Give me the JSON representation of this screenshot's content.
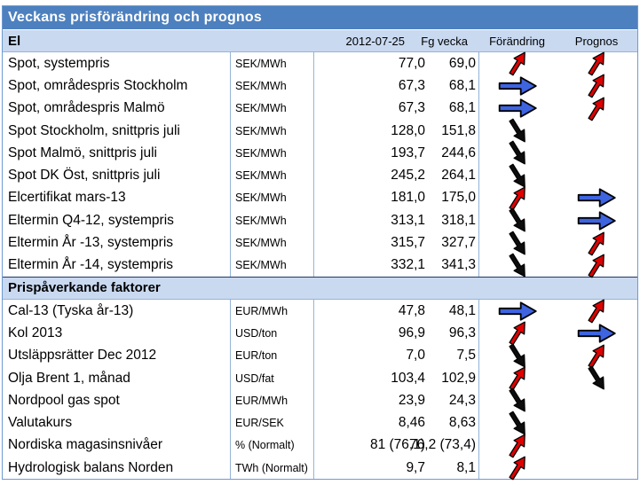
{
  "title": "Veckans prisförändring och prognos",
  "columns": {
    "date": "2012-07-25",
    "prev_week": "Fg vecka",
    "change": "Förändring",
    "forecast": "Prognos"
  },
  "sections": [
    {
      "header": "El",
      "rows": [
        {
          "label": "Spot, systempris",
          "unit": "SEK/MWh",
          "current": "77,0",
          "previous": "69,0",
          "change": "up",
          "forecast": "up"
        },
        {
          "label": "Spot, områdespris Stockholm",
          "unit": "SEK/MWh",
          "current": "67,3",
          "previous": "68,1",
          "change": "flat",
          "forecast": "up"
        },
        {
          "label": "Spot, områdespris Malmö",
          "unit": "SEK/MWh",
          "current": "67,3",
          "previous": "68,1",
          "change": "flat",
          "forecast": "up"
        },
        {
          "label": "Spot Stockholm, snittpris juli",
          "unit": "SEK/MWh",
          "current": "128,0",
          "previous": "151,8",
          "change": "down",
          "forecast": "none"
        },
        {
          "label": "Spot Malmö, snittpris juli",
          "unit": "SEK/MWh",
          "current": "193,7",
          "previous": "244,6",
          "change": "down",
          "forecast": "none"
        },
        {
          "label": "Spot DK Öst, snittpris juli",
          "unit": "SEK/MWh",
          "current": "245,2",
          "previous": "264,1",
          "change": "down",
          "forecast": "none"
        },
        {
          "label": "Elcertifikat mars-13",
          "unit": "SEK/MWh",
          "current": "181,0",
          "previous": "175,0",
          "change": "up",
          "forecast": "flat"
        },
        {
          "label": "Eltermin Q4-12, systempris",
          "unit": "SEK/MWh",
          "current": "313,1",
          "previous": "318,1",
          "change": "down",
          "forecast": "flat"
        },
        {
          "label": "Eltermin År -13, systempris",
          "unit": "SEK/MWh",
          "current": "315,7",
          "previous": "327,7",
          "change": "down",
          "forecast": "up"
        },
        {
          "label": "Eltermin År -14, systempris",
          "unit": "SEK/MWh",
          "current": "332,1",
          "previous": "341,3",
          "change": "down",
          "forecast": "up"
        }
      ]
    },
    {
      "header": "Prispåverkande faktorer",
      "rows": [
        {
          "label": "Cal-13 (Tyska år-13)",
          "unit": "EUR/MWh",
          "current": "47,8",
          "previous": "48,1",
          "change": "flat",
          "forecast": "up"
        },
        {
          "label": "Kol 2013",
          "unit": "USD/ton",
          "current": "96,9",
          "previous": "96,3",
          "change": "up",
          "forecast": "flat"
        },
        {
          "label": "Utsläppsrätter Dec 2012",
          "unit": "EUR/ton",
          "current": "7,0",
          "previous": "7,5",
          "change": "down",
          "forecast": "up"
        },
        {
          "label": "Olja Brent 1, månad",
          "unit": "USD/fat",
          "current": "103,4",
          "previous": "102,9",
          "change": "up",
          "forecast": "down"
        },
        {
          "label": "Nordpool gas spot",
          "unit": "EUR/MWh",
          "current": "23,9",
          "previous": "24,3",
          "change": "down",
          "forecast": "none"
        },
        {
          "label": "Valutakurs",
          "unit": "EUR/SEK",
          "current": "8,46",
          "previous": "8,63",
          "change": "down",
          "forecast": "none"
        },
        {
          "label": "Nordiska magasinsnivåer",
          "unit": "% (Normalt)",
          "current": "81 (76,1)",
          "previous": "76,2 (73,4)",
          "change": "up",
          "forecast": "none"
        },
        {
          "label": "Hydrologisk balans Norden",
          "unit": "TWh (Normalt)",
          "current": "9,7",
          "previous": "8,1",
          "change": "up",
          "forecast": "none"
        }
      ]
    }
  ],
  "arrows": {
    "up": {
      "icon_name": "red-up-arrow-icon",
      "color": "#e00000"
    },
    "flat": {
      "icon_name": "blue-right-arrow-icon",
      "color": "#3e64e0"
    },
    "down": {
      "icon_name": "black-down-arrow-icon",
      "color": "#0d0d0d"
    }
  },
  "colors": {
    "title_bg": "#4d80be",
    "section_bg": "#c9d9f0",
    "border_light": "#95b3d7",
    "border_dark": "#1f3864",
    "border_outer": "#6d9bd1",
    "title_text": "#ffffff",
    "body_text": "#000000"
  }
}
